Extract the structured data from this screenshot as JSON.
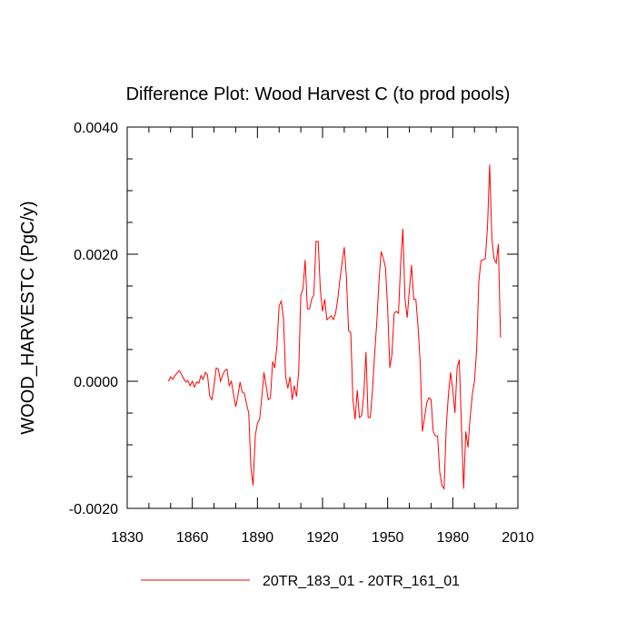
{
  "chart_data": {
    "type": "line",
    "title": "Difference Plot: Wood Harvest C (to prod pools)",
    "y_label": "WOOD_HARVESTC  (PgC/y)",
    "xlim": [
      1830,
      2010
    ],
    "xticks": [
      1830,
      1860,
      1890,
      1920,
      1950,
      1980,
      2010
    ],
    "xminorticks": [
      1840,
      1850,
      1870,
      1880,
      1900,
      1910,
      1930,
      1940,
      1960,
      1970,
      1990,
      2000
    ],
    "ylim": [
      -0.002,
      0.004
    ],
    "yticks": [
      {
        "value": -0.002,
        "label": "-0.0020"
      },
      {
        "value": 0,
        "label": "0.0000"
      },
      {
        "value": 0.002,
        "label": "0.0020"
      },
      {
        "value": 0.004,
        "label": "0.0040"
      }
    ],
    "yminorticks": [
      -0.0015,
      -0.001,
      -0.0005,
      0.0005,
      0.001,
      0.0015,
      0.0025,
      0.003,
      0.0035
    ],
    "x": [
      1849,
      1850,
      1851,
      1852,
      1853,
      1854,
      1855,
      1856,
      1857,
      1858,
      1859,
      1860,
      1861,
      1862,
      1863,
      1864,
      1865,
      1866,
      1867,
      1868,
      1869,
      1870,
      1871,
      1872,
      1873,
      1874,
      1875,
      1876,
      1877,
      1878,
      1879,
      1880,
      1881,
      1882,
      1883,
      1884,
      1885,
      1886,
      1887,
      1888,
      1889,
      1890,
      1891,
      1892,
      1893,
      1894,
      1895,
      1896,
      1897,
      1898,
      1899,
      1900,
      1901,
      1902,
      1903,
      1904,
      1905,
      1906,
      1907,
      1908,
      1909,
      1910,
      1911,
      1912,
      1913,
      1914,
      1915,
      1916,
      1917,
      1918,
      1919,
      1920,
      1921,
      1922,
      1923,
      1924,
      1925,
      1926,
      1927,
      1928,
      1929,
      1930,
      1931,
      1932,
      1933,
      1934,
      1935,
      1936,
      1937,
      1938,
      1939,
      1940,
      1941,
      1942,
      1943,
      1944,
      1945,
      1946,
      1947,
      1948,
      1949,
      1950,
      1951,
      1952,
      1953,
      1954,
      1955,
      1956,
      1957,
      1958,
      1959,
      1960,
      1961,
      1962,
      1963,
      1964,
      1965,
      1966,
      1967,
      1968,
      1969,
      1970,
      1971,
      1972,
      1973,
      1974,
      1975,
      1976,
      1977,
      1978,
      1979,
      1980,
      1981,
      1982,
      1983,
      1984,
      1985,
      1986,
      1987,
      1988,
      1989,
      1990,
      1991,
      1992,
      1993,
      1994,
      1995,
      1996,
      1997,
      1998,
      1999,
      2000,
      2001,
      2002
    ],
    "series": [
      {
        "name": "20TR_183_01 - 20TR_161_01",
        "color": "#ff0000",
        "values": [
          0,
          7e-05,
          3e-05,
          9e-05,
          0.00013,
          0.00017,
          0.00011,
          4e-05,
          -1e-05,
          1e-05,
          -7e-05,
          0,
          -9e-05,
          -1e-05,
          -3e-05,
          9e-05,
          3e-05,
          0.00014,
          0.0001,
          -0.00023,
          -0.00029,
          -7e-05,
          0.00021,
          0.00019,
          0,
          0.0001,
          0.00017,
          0.00019,
          -7e-05,
          0,
          -0.00021,
          -0.0004,
          -0.00023,
          -1e-05,
          -0.00017,
          -0.00019,
          -0.00036,
          -0.0005,
          -0.00136,
          -0.00164,
          -0.00086,
          -0.00066,
          -0.0006,
          -0.00026,
          0.00014,
          -7e-05,
          -0.00029,
          -0.00026,
          0.00031,
          0.00021,
          0.00057,
          0.00119,
          0.00126,
          0.001,
          7e-05,
          -0.00011,
          7e-05,
          -0.00029,
          -7e-05,
          -0.00024,
          0.00014,
          0.00136,
          0.00146,
          0.00191,
          0.00114,
          0.00114,
          0.00129,
          0.00136,
          0.0022,
          0.0022,
          0.00143,
          0.0011,
          0.00129,
          0.00097,
          0.001,
          0.00103,
          0.00097,
          0.00107,
          0.00129,
          0.0016,
          0.00186,
          0.00211,
          0.00164,
          0.00079,
          0.00077,
          -0.00029,
          -0.0006,
          -0.00014,
          -0.00057,
          -0.00054,
          -0.00021,
          0.00046,
          -0.00057,
          -0.00057,
          -0.00014,
          0.00043,
          0.00093,
          0.00157,
          0.00204,
          0.00194,
          0.00179,
          0.00114,
          0.00021,
          0.00043,
          0.00107,
          0.0011,
          0.00107,
          0.00186,
          0.0024,
          0.00129,
          0.001,
          0.00143,
          0.00183,
          0.00129,
          0.00129,
          0.00086,
          0.00029,
          -0.00079,
          -0.00057,
          -0.00034,
          -0.00026,
          -0.00029,
          -0.00079,
          -0.00086,
          -0.00086,
          -0.00143,
          -0.00164,
          -0.00169,
          -0.00071,
          -0.00021,
          0.00014,
          -0.00014,
          -0.0005,
          0.00021,
          0.00034,
          -0.00071,
          -0.00169,
          -0.00079,
          -0.00104,
          -0.00057,
          -0.00021,
          0,
          0.0005,
          0.00157,
          0.0019,
          0.00191,
          0.00193,
          0.00243,
          0.00341,
          0.00226,
          0.00193,
          0.00186,
          0.00216,
          0.00069
        ]
      }
    ]
  }
}
